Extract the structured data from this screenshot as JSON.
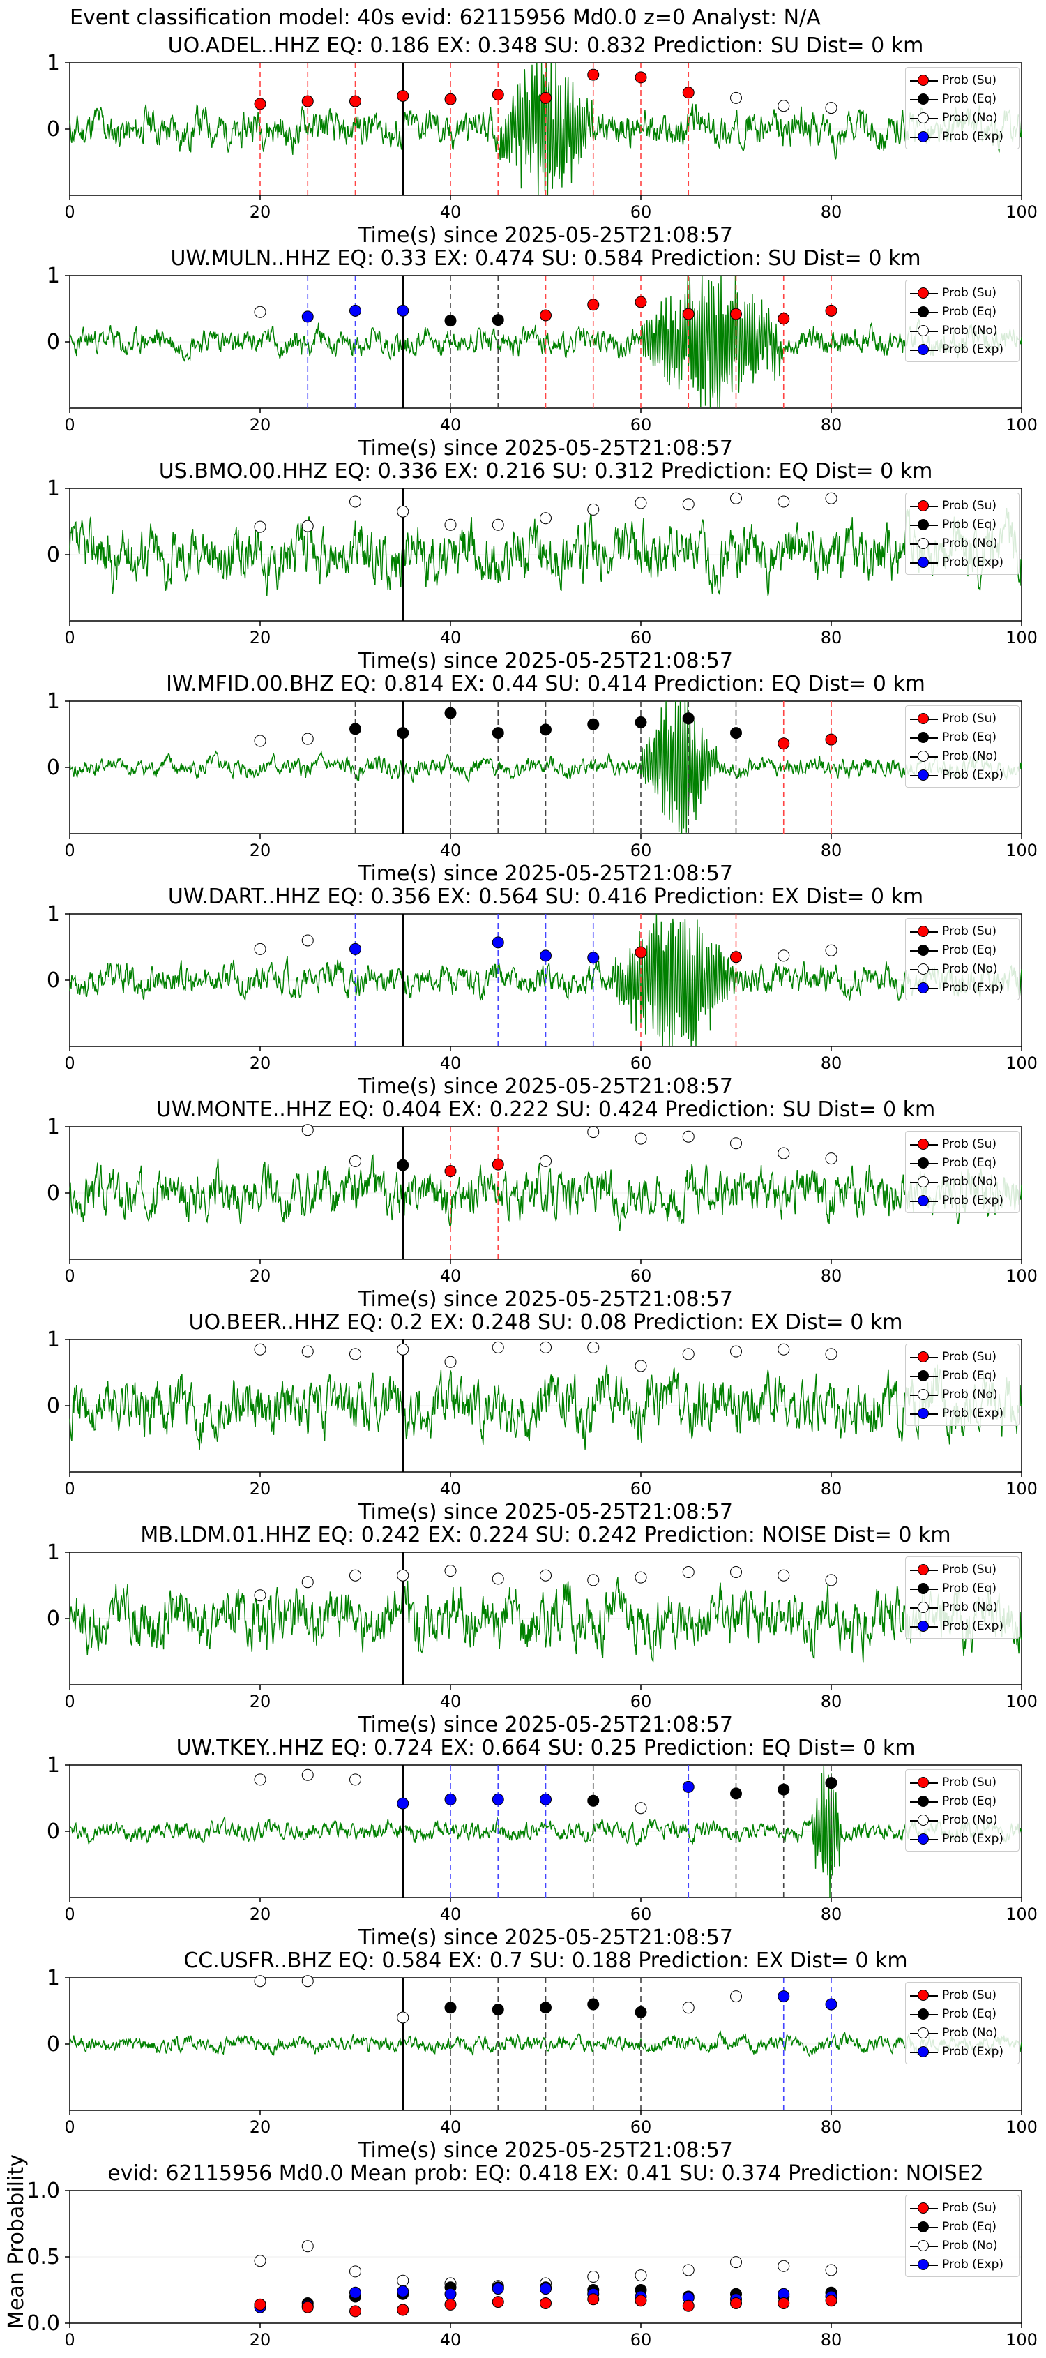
{
  "main_title": "Event classification model: 40s evid: 62115956 Md0.0 z=0 Analyst: N/A",
  "legend": [
    "Prob (Su)",
    "Prob (Eq)",
    "Prob (No)",
    "Prob (Exp)"
  ],
  "colors": {
    "su": "#ff0000",
    "eq": "#000000",
    "no": "#ffffff",
    "exp": "#0000ff",
    "trace": "#008000"
  },
  "xlabel": "Time(s) since 2025-05-25T21:08:57",
  "chart_data": [
    {
      "type": "line",
      "station": "UO.ADEL..HHZ",
      "title": "UO.ADEL..HHZ   EQ: 0.186  EX: 0.348  SU: 0.832   Prediction: SU    Dist= 0 km",
      "xlim": [
        0,
        100
      ],
      "ylim": [
        -1,
        1
      ],
      "xticks": [
        0,
        20,
        40,
        60,
        80,
        100
      ],
      "yticks": [
        0,
        1
      ],
      "arrival": 35,
      "amp": 0.35,
      "seed": 11,
      "burst": [
        45,
        55
      ],
      "points": [
        {
          "x": 20,
          "y": 0.38,
          "c": "su"
        },
        {
          "x": 25,
          "y": 0.42,
          "c": "su"
        },
        {
          "x": 30,
          "y": 0.42,
          "c": "su"
        },
        {
          "x": 35,
          "y": 0.5,
          "c": "su"
        },
        {
          "x": 40,
          "y": 0.45,
          "c": "su"
        },
        {
          "x": 45,
          "y": 0.52,
          "c": "su"
        },
        {
          "x": 50,
          "y": 0.47,
          "c": "su"
        },
        {
          "x": 55,
          "y": 0.82,
          "c": "su"
        },
        {
          "x": 60,
          "y": 0.78,
          "c": "su"
        },
        {
          "x": 65,
          "y": 0.55,
          "c": "su"
        },
        {
          "x": 70,
          "y": 0.47,
          "c": "no"
        },
        {
          "x": 75,
          "y": 0.35,
          "c": "no"
        },
        {
          "x": 80,
          "y": 0.32,
          "c": "no"
        }
      ]
    },
    {
      "type": "line",
      "station": "UW.MULN..HHZ",
      "title": "UW.MULN..HHZ   EQ: 0.33  EX: 0.474  SU: 0.584   Prediction: SU    Dist= 0 km",
      "xlim": [
        0,
        100
      ],
      "ylim": [
        -1,
        1
      ],
      "xticks": [
        0,
        20,
        40,
        60,
        80,
        100
      ],
      "yticks": [
        0,
        1
      ],
      "arrival": 35,
      "amp": 0.25,
      "seed": 23,
      "burst": [
        60,
        75
      ],
      "points": [
        {
          "x": 20,
          "y": 0.45,
          "c": "no"
        },
        {
          "x": 25,
          "y": 0.38,
          "c": "exp"
        },
        {
          "x": 30,
          "y": 0.47,
          "c": "exp"
        },
        {
          "x": 35,
          "y": 0.47,
          "c": "exp"
        },
        {
          "x": 40,
          "y": 0.32,
          "c": "eq"
        },
        {
          "x": 45,
          "y": 0.33,
          "c": "eq"
        },
        {
          "x": 50,
          "y": 0.4,
          "c": "su"
        },
        {
          "x": 55,
          "y": 0.56,
          "c": "su"
        },
        {
          "x": 60,
          "y": 0.6,
          "c": "su"
        },
        {
          "x": 65,
          "y": 0.42,
          "c": "su"
        },
        {
          "x": 70,
          "y": 0.42,
          "c": "su"
        },
        {
          "x": 75,
          "y": 0.35,
          "c": "su"
        },
        {
          "x": 80,
          "y": 0.47,
          "c": "su"
        }
      ]
    },
    {
      "type": "line",
      "station": "US.BMO.00.HHZ",
      "title": "US.BMO.00.HHZ   EQ: 0.336  EX: 0.216  SU: 0.312   Prediction: EQ    Dist= 0 km",
      "xlim": [
        0,
        100
      ],
      "ylim": [
        -1,
        1
      ],
      "xticks": [
        0,
        20,
        40,
        60,
        80,
        100
      ],
      "yticks": [
        0,
        1
      ],
      "arrival": 35,
      "amp": 0.55,
      "seed": 37,
      "burst": null,
      "points": [
        {
          "x": 20,
          "y": 0.42,
          "c": "no"
        },
        {
          "x": 25,
          "y": 0.43,
          "c": "no"
        },
        {
          "x": 30,
          "y": 0.8,
          "c": "no"
        },
        {
          "x": 35,
          "y": 0.65,
          "c": "no"
        },
        {
          "x": 40,
          "y": 0.45,
          "c": "no"
        },
        {
          "x": 45,
          "y": 0.45,
          "c": "no"
        },
        {
          "x": 50,
          "y": 0.55,
          "c": "no"
        },
        {
          "x": 55,
          "y": 0.68,
          "c": "no"
        },
        {
          "x": 60,
          "y": 0.78,
          "c": "no"
        },
        {
          "x": 65,
          "y": 0.76,
          "c": "no"
        },
        {
          "x": 70,
          "y": 0.85,
          "c": "no"
        },
        {
          "x": 75,
          "y": 0.8,
          "c": "no"
        },
        {
          "x": 80,
          "y": 0.85,
          "c": "no"
        }
      ]
    },
    {
      "type": "line",
      "station": "IW.MFID.00.BHZ",
      "title": "IW.MFID.00.BHZ   EQ: 0.814  EX: 0.44  SU: 0.414   Prediction: EQ    Dist= 0 km",
      "xlim": [
        0,
        100
      ],
      "ylim": [
        -1,
        1
      ],
      "xticks": [
        0,
        20,
        40,
        60,
        80,
        100
      ],
      "yticks": [
        0,
        1
      ],
      "arrival": 35,
      "amp": 0.18,
      "seed": 41,
      "burst": [
        60,
        68
      ],
      "points": [
        {
          "x": 20,
          "y": 0.4,
          "c": "no"
        },
        {
          "x": 25,
          "y": 0.43,
          "c": "no"
        },
        {
          "x": 30,
          "y": 0.58,
          "c": "eq"
        },
        {
          "x": 35,
          "y": 0.52,
          "c": "eq"
        },
        {
          "x": 40,
          "y": 0.82,
          "c": "eq"
        },
        {
          "x": 45,
          "y": 0.52,
          "c": "eq"
        },
        {
          "x": 50,
          "y": 0.57,
          "c": "eq"
        },
        {
          "x": 55,
          "y": 0.65,
          "c": "eq"
        },
        {
          "x": 60,
          "y": 0.68,
          "c": "eq"
        },
        {
          "x": 65,
          "y": 0.74,
          "c": "eq"
        },
        {
          "x": 70,
          "y": 0.52,
          "c": "eq"
        },
        {
          "x": 75,
          "y": 0.36,
          "c": "su"
        },
        {
          "x": 80,
          "y": 0.42,
          "c": "su"
        }
      ]
    },
    {
      "type": "line",
      "station": "UW.DART..HHZ",
      "title": "UW.DART..HHZ   EQ: 0.356  EX: 0.564  SU: 0.416   Prediction: EX    Dist= 0 km",
      "xlim": [
        0,
        100
      ],
      "ylim": [
        -1,
        1
      ],
      "xticks": [
        0,
        20,
        40,
        60,
        80,
        100
      ],
      "yticks": [
        0,
        1
      ],
      "arrival": 35,
      "amp": 0.3,
      "seed": 53,
      "burst": [
        57,
        70
      ],
      "points": [
        {
          "x": 20,
          "y": 0.47,
          "c": "no"
        },
        {
          "x": 25,
          "y": 0.6,
          "c": "no"
        },
        {
          "x": 30,
          "y": 0.47,
          "c": "exp"
        },
        {
          "x": 45,
          "y": 0.57,
          "c": "exp"
        },
        {
          "x": 50,
          "y": 0.37,
          "c": "exp"
        },
        {
          "x": 55,
          "y": 0.34,
          "c": "exp"
        },
        {
          "x": 60,
          "y": 0.42,
          "c": "su"
        },
        {
          "x": 70,
          "y": 0.35,
          "c": "su"
        },
        {
          "x": 75,
          "y": 0.37,
          "c": "no"
        },
        {
          "x": 80,
          "y": 0.45,
          "c": "no"
        }
      ]
    },
    {
      "type": "line",
      "station": "UW.MONTE..HHZ",
      "title": "UW.MONTE..HHZ   EQ: 0.404  EX: 0.222  SU: 0.424   Prediction: SU    Dist= 0 km",
      "xlim": [
        0,
        100
      ],
      "ylim": [
        -1,
        1
      ],
      "xticks": [
        0,
        20,
        40,
        60,
        80,
        100
      ],
      "yticks": [
        0,
        1
      ],
      "arrival": 35,
      "amp": 0.45,
      "seed": 67,
      "burst": null,
      "points": [
        {
          "x": 25,
          "y": 0.95,
          "c": "no"
        },
        {
          "x": 30,
          "y": 0.48,
          "c": "no"
        },
        {
          "x": 35,
          "y": 0.42,
          "c": "eq"
        },
        {
          "x": 40,
          "y": 0.33,
          "c": "su"
        },
        {
          "x": 45,
          "y": 0.43,
          "c": "su"
        },
        {
          "x": 50,
          "y": 0.48,
          "c": "no"
        },
        {
          "x": 55,
          "y": 0.92,
          "c": "no"
        },
        {
          "x": 60,
          "y": 0.82,
          "c": "no"
        },
        {
          "x": 65,
          "y": 0.85,
          "c": "no"
        },
        {
          "x": 70,
          "y": 0.75,
          "c": "no"
        },
        {
          "x": 75,
          "y": 0.6,
          "c": "no"
        },
        {
          "x": 80,
          "y": 0.52,
          "c": "no"
        }
      ]
    },
    {
      "type": "line",
      "station": "UO.BEER..HHZ",
      "title": "UO.BEER..HHZ   EQ: 0.2  EX: 0.248  SU: 0.08   Prediction: EX    Dist= 0 km",
      "xlim": [
        0,
        100
      ],
      "ylim": [
        -1,
        1
      ],
      "xticks": [
        0,
        20,
        40,
        60,
        80,
        100
      ],
      "yticks": [
        0,
        1
      ],
      "arrival": 35,
      "amp": 0.55,
      "seed": 71,
      "burst": null,
      "points": [
        {
          "x": 20,
          "y": 0.85,
          "c": "no"
        },
        {
          "x": 25,
          "y": 0.82,
          "c": "no"
        },
        {
          "x": 30,
          "y": 0.78,
          "c": "no"
        },
        {
          "x": 35,
          "y": 0.85,
          "c": "no"
        },
        {
          "x": 40,
          "y": 0.66,
          "c": "no"
        },
        {
          "x": 45,
          "y": 0.88,
          "c": "no"
        },
        {
          "x": 50,
          "y": 0.88,
          "c": "no"
        },
        {
          "x": 55,
          "y": 0.88,
          "c": "no"
        },
        {
          "x": 60,
          "y": 0.6,
          "c": "no"
        },
        {
          "x": 65,
          "y": 0.78,
          "c": "no"
        },
        {
          "x": 70,
          "y": 0.82,
          "c": "no"
        },
        {
          "x": 75,
          "y": 0.85,
          "c": "no"
        },
        {
          "x": 80,
          "y": 0.78,
          "c": "no"
        }
      ]
    },
    {
      "type": "line",
      "station": "MB.LDM.01.HHZ",
      "title": "MB.LDM.01.HHZ   EQ: 0.242  EX: 0.224  SU: 0.242   Prediction: NOISE    Dist= 0 km",
      "xlim": [
        0,
        100
      ],
      "ylim": [
        -1,
        1
      ],
      "xticks": [
        0,
        20,
        40,
        60,
        80,
        100
      ],
      "yticks": [
        0,
        1
      ],
      "arrival": 35,
      "amp": 0.55,
      "seed": 83,
      "burst": null,
      "points": [
        {
          "x": 20,
          "y": 0.35,
          "c": "no"
        },
        {
          "x": 25,
          "y": 0.55,
          "c": "no"
        },
        {
          "x": 30,
          "y": 0.65,
          "c": "no"
        },
        {
          "x": 35,
          "y": 0.65,
          "c": "no"
        },
        {
          "x": 40,
          "y": 0.72,
          "c": "no"
        },
        {
          "x": 45,
          "y": 0.6,
          "c": "no"
        },
        {
          "x": 50,
          "y": 0.65,
          "c": "no"
        },
        {
          "x": 55,
          "y": 0.58,
          "c": "no"
        },
        {
          "x": 60,
          "y": 0.62,
          "c": "no"
        },
        {
          "x": 65,
          "y": 0.7,
          "c": "no"
        },
        {
          "x": 70,
          "y": 0.7,
          "c": "no"
        },
        {
          "x": 75,
          "y": 0.65,
          "c": "no"
        },
        {
          "x": 80,
          "y": 0.58,
          "c": "no"
        }
      ]
    },
    {
      "type": "line",
      "station": "UW.TKEY..HHZ",
      "title": "UW.TKEY..HHZ   EQ: 0.724  EX: 0.664  SU: 0.25   Prediction: EQ    Dist= 0 km",
      "xlim": [
        0,
        100
      ],
      "ylim": [
        -1,
        1
      ],
      "xticks": [
        0,
        20,
        40,
        60,
        80,
        100
      ],
      "yticks": [
        0,
        1
      ],
      "arrival": 35,
      "amp": 0.18,
      "seed": 97,
      "burst": [
        78,
        81
      ],
      "points": [
        {
          "x": 20,
          "y": 0.78,
          "c": "no"
        },
        {
          "x": 25,
          "y": 0.85,
          "c": "no"
        },
        {
          "x": 30,
          "y": 0.78,
          "c": "no"
        },
        {
          "x": 35,
          "y": 0.42,
          "c": "exp"
        },
        {
          "x": 40,
          "y": 0.48,
          "c": "exp"
        },
        {
          "x": 45,
          "y": 0.48,
          "c": "exp"
        },
        {
          "x": 50,
          "y": 0.48,
          "c": "exp"
        },
        {
          "x": 55,
          "y": 0.46,
          "c": "eq"
        },
        {
          "x": 60,
          "y": 0.35,
          "c": "no"
        },
        {
          "x": 65,
          "y": 0.67,
          "c": "exp"
        },
        {
          "x": 70,
          "y": 0.57,
          "c": "eq"
        },
        {
          "x": 75,
          "y": 0.63,
          "c": "eq"
        },
        {
          "x": 80,
          "y": 0.73,
          "c": "eq"
        }
      ]
    },
    {
      "type": "line",
      "station": "CC.USFR..BHZ",
      "title": "CC.USFR..BHZ   EQ: 0.584  EX: 0.7  SU: 0.188   Prediction: EX    Dist= 0 km",
      "xlim": [
        0,
        100
      ],
      "ylim": [
        -1,
        1
      ],
      "xticks": [
        0,
        20,
        40,
        60,
        80,
        100
      ],
      "yticks": [
        0,
        1
      ],
      "arrival": 35,
      "amp": 0.15,
      "seed": 101,
      "burst": null,
      "points": [
        {
          "x": 20,
          "y": 0.95,
          "c": "no"
        },
        {
          "x": 25,
          "y": 0.95,
          "c": "no"
        },
        {
          "x": 35,
          "y": 0.4,
          "c": "no"
        },
        {
          "x": 40,
          "y": 0.55,
          "c": "eq"
        },
        {
          "x": 45,
          "y": 0.52,
          "c": "eq"
        },
        {
          "x": 50,
          "y": 0.55,
          "c": "eq"
        },
        {
          "x": 55,
          "y": 0.6,
          "c": "eq"
        },
        {
          "x": 60,
          "y": 0.48,
          "c": "eq"
        },
        {
          "x": 65,
          "y": 0.55,
          "c": "no"
        },
        {
          "x": 70,
          "y": 0.72,
          "c": "no"
        },
        {
          "x": 75,
          "y": 0.72,
          "c": "exp"
        },
        {
          "x": 80,
          "y": 0.6,
          "c": "exp"
        }
      ]
    }
  ],
  "summary": {
    "type": "scatter",
    "title": "evid: 62115956  Md0.0   Mean prob:   EQ: 0.418  EX: 0.41  SU: 0.374   Prediction: NOISE2",
    "ylabel": "Mean Probability",
    "xlim": [
      0,
      100
    ],
    "ylim": [
      0,
      1
    ],
    "xticks": [
      0,
      20,
      40,
      60,
      80,
      100
    ],
    "yticks": [
      0.0,
      0.5,
      1.0
    ],
    "ytick_labels": [
      "0.0",
      "0.5",
      "1.0"
    ],
    "series": [
      {
        "name": "Prob (No)",
        "c": "no",
        "x": [
          20,
          25,
          30,
          35,
          40,
          45,
          50,
          55,
          60,
          65,
          70,
          75,
          80
        ],
        "y": [
          0.47,
          0.58,
          0.39,
          0.32,
          0.3,
          0.28,
          0.3,
          0.35,
          0.36,
          0.4,
          0.46,
          0.43,
          0.4
        ]
      },
      {
        "name": "Prob (Eq)",
        "c": "eq",
        "x": [
          20,
          25,
          30,
          35,
          40,
          45,
          50,
          55,
          60,
          65,
          70,
          75,
          80
        ],
        "y": [
          0.14,
          0.15,
          0.2,
          0.22,
          0.27,
          0.27,
          0.27,
          0.25,
          0.25,
          0.2,
          0.22,
          0.2,
          0.23
        ]
      },
      {
        "name": "Prob (Exp)",
        "c": "exp",
        "x": [
          20,
          25,
          30,
          35,
          40,
          45,
          50,
          55,
          60,
          65,
          70,
          75,
          80
        ],
        "y": [
          0.12,
          0.13,
          0.23,
          0.24,
          0.22,
          0.26,
          0.26,
          0.22,
          0.2,
          0.19,
          0.18,
          0.22,
          0.2
        ]
      },
      {
        "name": "Prob (Su)",
        "c": "su",
        "x": [
          20,
          25,
          30,
          35,
          40,
          45,
          50,
          55,
          60,
          65,
          70,
          75,
          80
        ],
        "y": [
          0.14,
          0.12,
          0.09,
          0.1,
          0.14,
          0.16,
          0.15,
          0.18,
          0.17,
          0.13,
          0.15,
          0.15,
          0.17
        ]
      }
    ]
  }
}
